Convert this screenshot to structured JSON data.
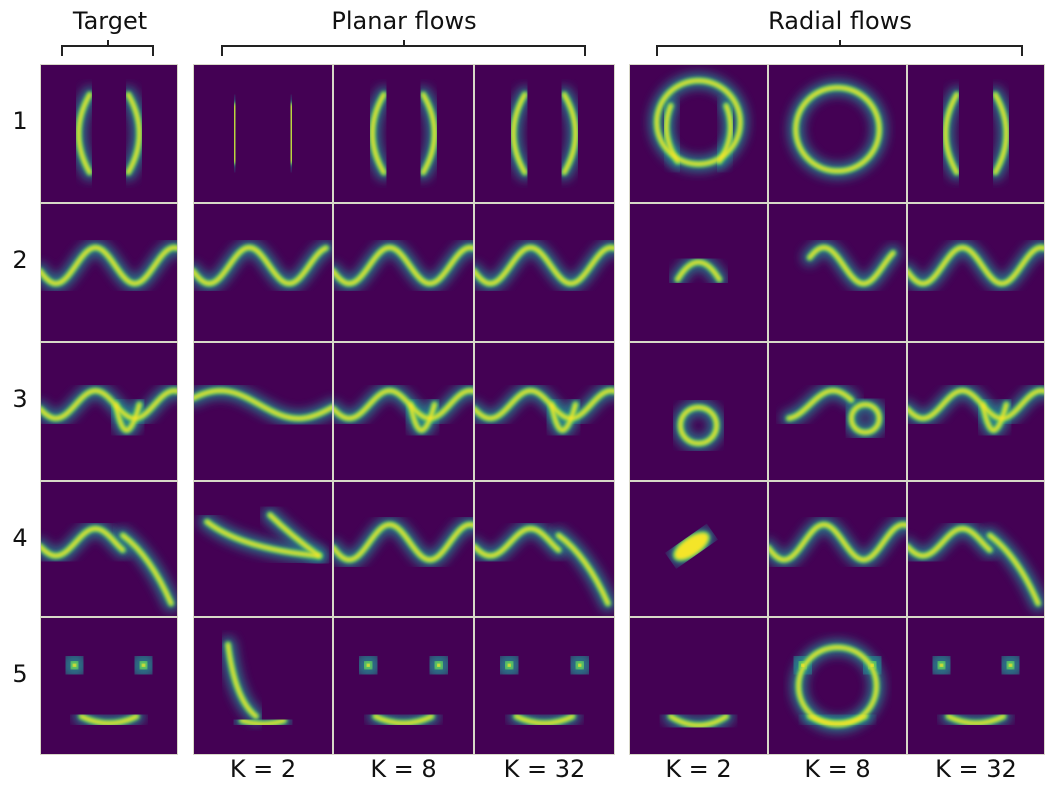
{
  "column_groups": [
    {
      "title": "Target"
    },
    {
      "title": "Planar flows"
    },
    {
      "title": "Radial flows"
    }
  ],
  "row_labels": [
    "1",
    "2",
    "3",
    "4",
    "5"
  ],
  "column_labels": [
    "K = 2",
    "K = 8",
    "K = 32",
    "K = 2",
    "K = 8",
    "K = 32"
  ]
}
